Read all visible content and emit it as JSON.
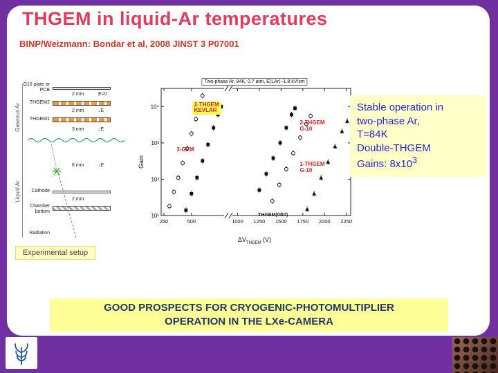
{
  "slide": {
    "title": "THGEM in liquid-Ar temperatures",
    "subtitle": "BINP/Weizmann: Bondar et al, 2008 JINST 3 P07001",
    "caption": "Experimental setup",
    "banner_line1": "GOOD PROSPECTS FOR CRYOGENIC-PHOTOMULTIPLIER",
    "banner_line2": "OPERATION IN THE LXe-CAMERA"
  },
  "note": {
    "lines": [
      "Stable operation in",
      "two-phase Ar,",
      "T=84K",
      "Double-THGEM"
    ],
    "gains_prefix": "Gains: 8x10",
    "gains_exp": "3"
  },
  "diagram": {
    "labels": {
      "g10": "G10 plate or PCB",
      "thgem2": "THGEM2",
      "thgem1": "THGEM1",
      "cathode": "Cathode",
      "chamber": "Chamber bottom",
      "radiation": "Radiation"
    },
    "side": [
      "Gaseous Ar",
      "Liquid Ar"
    ],
    "gaps": [
      "2 mm",
      "2 mm",
      "3 mm",
      "8 mm",
      "2 mm"
    ],
    "fields": [
      "E=0",
      "↓E",
      "↓E",
      "↓E"
    ]
  },
  "colors": {
    "frame": "#7030A0",
    "title": "#E23B5B",
    "subtitle": "#CC3828",
    "note_bg": "#FFFFC8",
    "note_text": "#2626CC",
    "banner_bg": "#FFFF99",
    "banner_text": "#1F3864",
    "caption_bg": "#FFFFC4",
    "thgem_orange": "#E89A40",
    "annotation_red": "#CC2020",
    "highlight_yellow": "#FFFF55"
  },
  "chart_data": {
    "type": "scatter",
    "title": "Two-phase Ar, 84K, 0.7 atm, E(LAr)~1.8 kV/cm",
    "xlabel": "ΔV_THGEM (V)",
    "xlabel_parts": {
      "pre": "ΔV",
      "sub": "THGEM",
      "post": " (V)"
    },
    "ylabel": "Gain",
    "ylog": [
      1,
      4.5
    ],
    "y_ticks": [
      {
        "v": 10,
        "label": "10¹"
      },
      {
        "v": 100,
        "label": "10²"
      },
      {
        "v": 1000,
        "label": "10³"
      },
      {
        "v": 10000,
        "label": "10⁴"
      }
    ],
    "x_ticks": [
      250,
      500,
      1000,
      1250,
      1500,
      1750,
      2000,
      2250
    ],
    "x_break": {
      "left_min": 225,
      "left_max": 775,
      "right_min": 950,
      "right_max": 2300
    },
    "series": [
      {
        "name": "3-GEM",
        "marker": "circle-open",
        "points": [
          [
            300,
            18
          ],
          [
            340,
            45
          ],
          [
            380,
            110
          ],
          [
            420,
            280
          ],
          [
            460,
            700
          ],
          [
            500,
            1800
          ],
          [
            540,
            4500
          ],
          [
            575,
            11000
          ],
          [
            600,
            20000
          ]
        ]
      },
      {
        "name": "2-THGEM KEVLAR",
        "marker": "square-filled",
        "points": [
          [
            450,
            14
          ],
          [
            500,
            40
          ],
          [
            550,
            110
          ],
          [
            600,
            320
          ],
          [
            650,
            900
          ],
          [
            700,
            2600
          ],
          [
            740,
            6000
          ],
          [
            770,
            10000
          ]
        ]
      },
      {
        "name": "2-THGEM G-10",
        "marker": "square-filled",
        "points": [
          [
            1250,
            50
          ],
          [
            1330,
            140
          ],
          [
            1410,
            380
          ],
          [
            1490,
            1000
          ],
          [
            1560,
            2600
          ],
          [
            1620,
            6000
          ],
          [
            1660,
            9000
          ]
        ]
      },
      {
        "name": "1-THGEM G-10",
        "marker": "circle-open",
        "points": [
          [
            1400,
            25
          ],
          [
            1480,
            70
          ],
          [
            1560,
            190
          ],
          [
            1640,
            520
          ],
          [
            1720,
            1400
          ],
          [
            1790,
            3300
          ],
          [
            1840,
            5500
          ]
        ]
      },
      {
        "name": "THGEM(G10)",
        "marker": "triangle-filled",
        "points": [
          [
            1800,
            15
          ],
          [
            1880,
            40
          ],
          [
            1960,
            110
          ],
          [
            2040,
            300
          ],
          [
            2120,
            800
          ],
          [
            2200,
            2100
          ],
          [
            2260,
            4000
          ]
        ]
      }
    ],
    "annotations": [
      {
        "text": "2-THGEM\nKEVLAR",
        "color": "#CC2020",
        "bg": "#FFFF55",
        "size": 8,
        "x": 0.26,
        "y": 0.15
      },
      {
        "text": "3-GEM",
        "color": "#CC2020",
        "size": 8,
        "x": 0.19,
        "y": 0.44
      },
      {
        "text": "2-THGEM\nG-10",
        "color": "#CC2020",
        "size": 8,
        "x": 0.75,
        "y": 0.27
      },
      {
        "text": "1-THGEM\nG-10",
        "color": "#CC2020",
        "size": 8,
        "x": 0.75,
        "y": 0.53
      },
      {
        "text": "THGEM(G10)",
        "color": "#222222",
        "size": 7,
        "x": 0.56,
        "y": 0.85
      }
    ]
  }
}
